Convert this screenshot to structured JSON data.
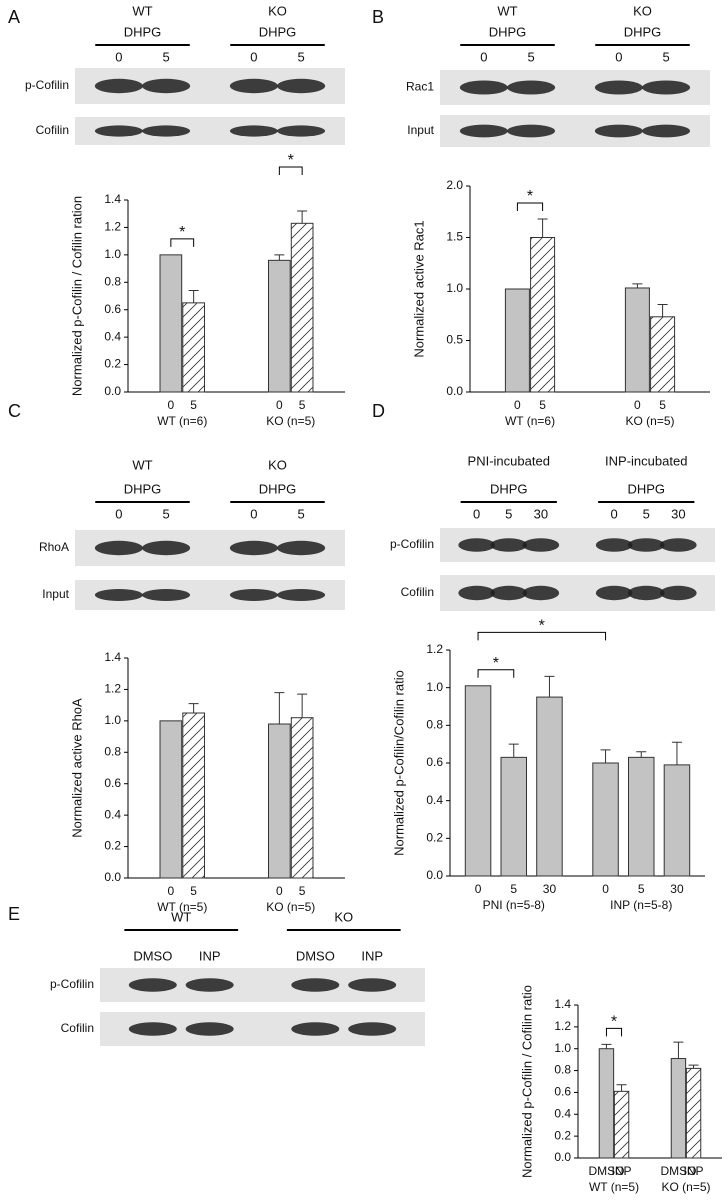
{
  "panels": [
    {
      "letter": "A",
      "blot": {
        "groups": [
          {
            "name": "WT",
            "treatment": "DHPG",
            "lanes": [
              "0",
              "5"
            ]
          },
          {
            "name": "KO",
            "treatment": "DHPG",
            "lanes": [
              "0",
              "5"
            ]
          }
        ],
        "rows": [
          "p-Cofilin",
          "Cofilin"
        ]
      }
    },
    {
      "letter": "B",
      "blot": {
        "groups": [
          {
            "name": "WT",
            "treatment": "DHPG",
            "lanes": [
              "0",
              "5"
            ]
          },
          {
            "name": "KO",
            "treatment": "DHPG",
            "lanes": [
              "0",
              "5"
            ]
          }
        ],
        "rows": [
          "Rac1",
          "Input"
        ]
      }
    },
    {
      "letter": "C",
      "blot": {
        "groups": [
          {
            "name": "WT",
            "treatment": "DHPG",
            "lanes": [
              "0",
              "5"
            ]
          },
          {
            "name": "KO",
            "treatment": "DHPG",
            "lanes": [
              "0",
              "5"
            ]
          }
        ],
        "rows": [
          "RhoA",
          "Input"
        ]
      }
    },
    {
      "letter": "D",
      "blot": {
        "groups": [
          {
            "name": "PNI-incubated",
            "treatment": "DHPG",
            "lanes": [
              "0",
              "5",
              "30"
            ]
          },
          {
            "name": "INP-incubated",
            "treatment": "DHPG",
            "lanes": [
              "0",
              "5",
              "30"
            ]
          }
        ],
        "rows": [
          "p-Cofilin",
          "Cofilin"
        ]
      }
    },
    {
      "letter": "E",
      "blot": {
        "groups": [
          {
            "name": "WT",
            "lanes": [
              "DMSO",
              "INP"
            ]
          },
          {
            "name": "KO",
            "lanes": [
              "DMSO",
              "INP"
            ]
          }
        ],
        "rows": [
          "p-Cofilin",
          "Cofilin"
        ]
      }
    }
  ],
  "chart_data": [
    {
      "type": "bar",
      "y_label": "Normalized p-Cofilin / Cofilin ration",
      "categories": [
        "0",
        "5",
        "0",
        "5"
      ],
      "groups": [
        "WT (n=6)",
        "KO (n=5)"
      ],
      "values": [
        1.0,
        0.65,
        0.96,
        1.23
      ],
      "errors": [
        null,
        0.09,
        0.04,
        0.09
      ],
      "hatch": [
        false,
        true,
        false,
        true
      ],
      "color": "#c3c3c3",
      "ylim": [
        0,
        1.4
      ],
      "yticks": [
        {
          "value": 0,
          "label": "0.0"
        },
        0.2,
        0.4,
        0.6,
        0.8,
        {
          "value": 1,
          "label": "1.0"
        },
        1.2,
        1.4
      ],
      "significance": [
        {
          "label": "*",
          "bars": [
            0,
            1
          ]
        },
        {
          "label": "*",
          "bars": [
            2,
            3
          ]
        }
      ]
    },
    {
      "type": "bar",
      "y_label": "Normalized active Rac1",
      "categories": [
        "0",
        "5",
        "0",
        "5"
      ],
      "groups": [
        "WT (n=6)",
        "KO (n=5)"
      ],
      "values": [
        1.0,
        1.5,
        1.01,
        0.73
      ],
      "errors": [
        null,
        0.18,
        0.04,
        0.12
      ],
      "hatch": [
        false,
        true,
        false,
        true
      ],
      "color": "#c3c3c3",
      "ylim": [
        0,
        2
      ],
      "yticks": [
        {
          "value": 0,
          "label": "0.0"
        },
        0.5,
        {
          "value": 1,
          "label": "1.0"
        },
        1.5,
        {
          "value": 2,
          "label": "2.0"
        }
      ],
      "significance": [
        {
          "label": "*",
          "bars": [
            0,
            1
          ]
        }
      ]
    },
    {
      "type": "bar",
      "y_label": "Normalized active RhoA",
      "categories": [
        "0",
        "5",
        "0",
        "5"
      ],
      "groups": [
        "WT (n=5)",
        "KO (n=5)"
      ],
      "values": [
        1.0,
        1.05,
        0.98,
        1.02
      ],
      "errors": [
        null,
        0.06,
        0.2,
        0.15
      ],
      "hatch": [
        false,
        true,
        false,
        true
      ],
      "color": "#c3c3c3",
      "ylim": [
        0,
        1.4
      ],
      "yticks": [
        {
          "value": 0,
          "label": "0.0"
        },
        0.2,
        0.4,
        0.6,
        0.8,
        {
          "value": 1,
          "label": "1.0"
        },
        1.2,
        1.4
      ],
      "significance": []
    },
    {
      "type": "bar",
      "y_label": "Normalized p-Cofilin/Cofilin ratio",
      "categories": [
        "0",
        "5",
        "30",
        "0",
        "5",
        "30"
      ],
      "groups": [
        "PNI (n=5-8)",
        "INP (n=5-8)"
      ],
      "values": [
        1.01,
        0.63,
        0.95,
        0.6,
        0.63,
        0.59
      ],
      "errors": [
        null,
        0.07,
        0.11,
        0.07,
        0.03,
        0.12
      ],
      "hatch": [
        false,
        false,
        false,
        false,
        false,
        false
      ],
      "color": "#c3c3c3",
      "ylim": [
        0,
        1.2
      ],
      "yticks": [
        {
          "value": 0,
          "label": "0.0"
        },
        0.2,
        0.4,
        0.6,
        0.8,
        {
          "value": 1,
          "label": "1.0"
        },
        1.2
      ],
      "significance": [
        {
          "label": "*",
          "bars": [
            0,
            1
          ]
        },
        {
          "label": "*",
          "bars": [
            0,
            3
          ]
        }
      ]
    },
    {
      "type": "bar",
      "y_label": "Normalized p-Cofilin / Cofilin ratio",
      "categories": [
        "DMSO",
        "INP",
        "DMSO",
        "INP"
      ],
      "groups": [
        "WT (n=5)",
        "KO (n=5)"
      ],
      "values": [
        1.0,
        0.61,
        0.91,
        0.82
      ],
      "errors": [
        0.04,
        0.06,
        0.15,
        0.03
      ],
      "hatch": [
        false,
        true,
        false,
        true
      ],
      "color": "#c3c3c3",
      "ylim": [
        0,
        1.4
      ],
      "yticks": [
        {
          "value": 0,
          "label": "0.0"
        },
        0.2,
        0.4,
        0.6,
        0.8,
        {
          "value": 1,
          "label": "1.0"
        },
        1.2,
        1.4
      ],
      "significance": [
        {
          "label": "*",
          "bars": [
            0,
            1
          ]
        }
      ]
    }
  ]
}
